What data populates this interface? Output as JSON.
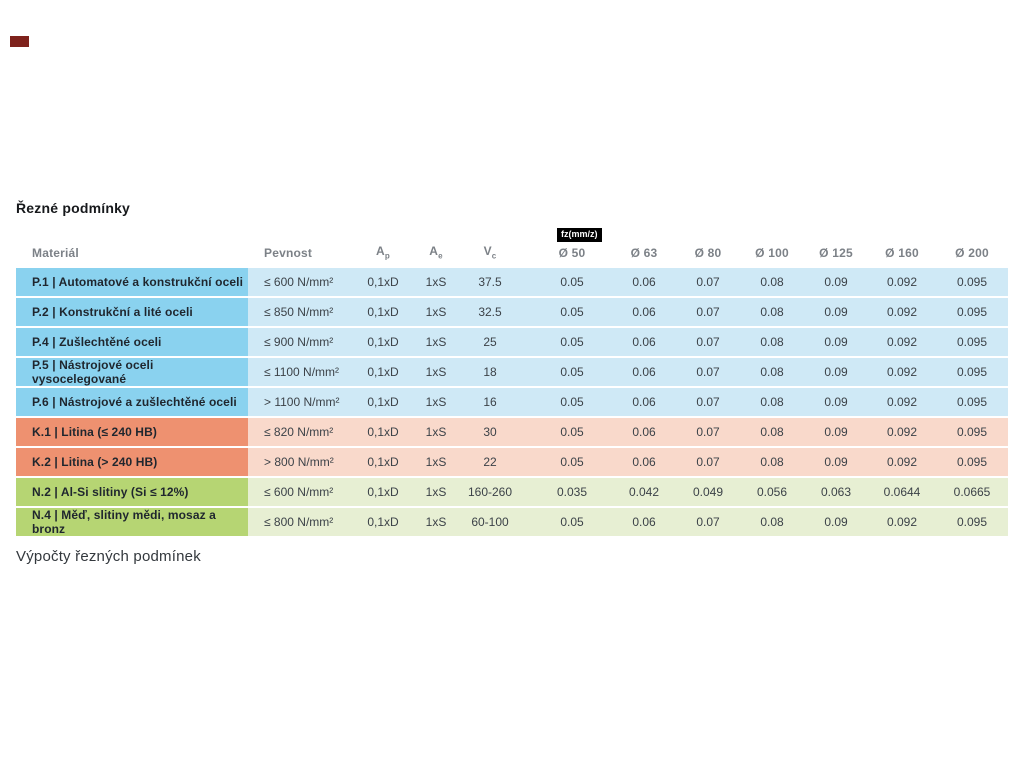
{
  "page": {
    "title": "Řezné podmínky",
    "footer_text": "Výpočty řezných podmínek"
  },
  "colors": {
    "blue_label": "#8ad2ef",
    "blue_cell": "#cfe9f6",
    "orange_label": "#ee9170",
    "orange_cell": "#f9d9cb",
    "green_label": "#b6d573",
    "green_cell": "#e7efd3",
    "badge_bg": "#000000",
    "marker": "#7e221c"
  },
  "table": {
    "fz_badge": "fz(mm/z)",
    "headers": {
      "material": "Materiál",
      "pevnost": "Pevnost",
      "ap_base": "A",
      "ap_sub": "p",
      "ae_base": "A",
      "ae_sub": "e",
      "vc_base": "V",
      "vc_sub": "c",
      "d50": "Ø 50",
      "d63": "Ø 63",
      "d80": "Ø 80",
      "d100": "Ø 100",
      "d125": "Ø 125",
      "d160": "Ø 160",
      "d200": "Ø 200"
    },
    "rows": [
      {
        "group": "blue",
        "material": "P.1 | Automatové a konstrukční oceli",
        "pevnost": "≤ 600 N/mm²",
        "ap": "0,1xD",
        "ae": "1xS",
        "vc": "37.5",
        "fz": [
          "0.05",
          "0.06",
          "0.07",
          "0.08",
          "0.09",
          "0.092",
          "0.095"
        ]
      },
      {
        "group": "blue",
        "material": "P.2 | Konstrukční a lité oceli",
        "pevnost": "≤ 850 N/mm²",
        "ap": "0,1xD",
        "ae": "1xS",
        "vc": "32.5",
        "fz": [
          "0.05",
          "0.06",
          "0.07",
          "0.08",
          "0.09",
          "0.092",
          "0.095"
        ]
      },
      {
        "group": "blue",
        "material": "P.4 | Zušlechtěné oceli",
        "pevnost": "≤ 900 N/mm²",
        "ap": "0,1xD",
        "ae": "1xS",
        "vc": "25",
        "fz": [
          "0.05",
          "0.06",
          "0.07",
          "0.08",
          "0.09",
          "0.092",
          "0.095"
        ]
      },
      {
        "group": "blue",
        "material": "P.5 | Nástrojové oceli vysocelegované",
        "pevnost": "≤ 1100 N/mm²",
        "ap": "0,1xD",
        "ae": "1xS",
        "vc": "18",
        "fz": [
          "0.05",
          "0.06",
          "0.07",
          "0.08",
          "0.09",
          "0.092",
          "0.095"
        ]
      },
      {
        "group": "blue",
        "material": "P.6 | Nástrojové a zušlechtěné oceli",
        "pevnost": "> 1100 N/mm²",
        "ap": "0,1xD",
        "ae": "1xS",
        "vc": "16",
        "fz": [
          "0.05",
          "0.06",
          "0.07",
          "0.08",
          "0.09",
          "0.092",
          "0.095"
        ]
      },
      {
        "group": "orange",
        "material": "K.1 | Litina (≤ 240 HB)",
        "pevnost": "≤ 820 N/mm²",
        "ap": "0,1xD",
        "ae": "1xS",
        "vc": "30",
        "fz": [
          "0.05",
          "0.06",
          "0.07",
          "0.08",
          "0.09",
          "0.092",
          "0.095"
        ]
      },
      {
        "group": "orange",
        "material": "K.2 | Litina (> 240 HB)",
        "pevnost": "> 800 N/mm²",
        "ap": "0,1xD",
        "ae": "1xS",
        "vc": "22",
        "fz": [
          "0.05",
          "0.06",
          "0.07",
          "0.08",
          "0.09",
          "0.092",
          "0.095"
        ]
      },
      {
        "group": "green",
        "material": "N.2 | Al-Si slitiny (Si ≤ 12%)",
        "pevnost": "≤ 600 N/mm²",
        "ap": "0,1xD",
        "ae": "1xS",
        "vc": "160-260",
        "fz": [
          "0.035",
          "0.042",
          "0.049",
          "0.056",
          "0.063",
          "0.0644",
          "0.0665"
        ]
      },
      {
        "group": "green",
        "material": "N.4 | Měď, slitiny mědi, mosaz a bronz",
        "pevnost": "≤ 800 N/mm²",
        "ap": "0,1xD",
        "ae": "1xS",
        "vc": "60-100",
        "fz": [
          "0.05",
          "0.06",
          "0.07",
          "0.08",
          "0.09",
          "0.092",
          "0.095"
        ]
      }
    ]
  }
}
